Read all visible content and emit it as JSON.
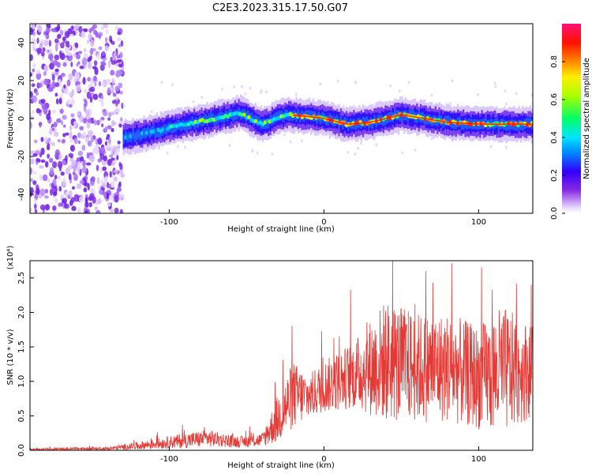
{
  "title": "C2E3.2023.315.17.50.G07",
  "chart_data": [
    {
      "type": "heatmap",
      "xlabel": "Height of straight line (km)",
      "ylabel": "Frequency (Hz)",
      "xlim": [
        -190,
        135
      ],
      "ylim": [
        -50,
        50
      ],
      "xticks": [
        -100,
        0,
        100
      ],
      "yticks": [
        -40,
        -20,
        0,
        20,
        40
      ],
      "colorbar": {
        "label": "Normalized spectral amplitude",
        "range": [
          0.0,
          1.0
        ],
        "ticks": [
          "0.0",
          "0.2",
          "0.4",
          "0.6",
          "0.8"
        ],
        "colormap": "rainbow (violet to magenta)"
      },
      "noise_region_x": [
        -190,
        -130
      ],
      "ridge": [
        {
          "x": -130,
          "f": -10
        },
        {
          "x": -110,
          "f": -7
        },
        {
          "x": -90,
          "f": -3
        },
        {
          "x": -70,
          "f": 0
        },
        {
          "x": -55,
          "f": 3
        },
        {
          "x": -40,
          "f": -3
        },
        {
          "x": -25,
          "f": 2
        },
        {
          "x": -10,
          "f": 1
        },
        {
          "x": 0,
          "f": 0
        },
        {
          "x": 15,
          "f": -3
        },
        {
          "x": 30,
          "f": -2
        },
        {
          "x": 50,
          "f": 2
        },
        {
          "x": 65,
          "f": 0
        },
        {
          "x": 80,
          "f": -2
        },
        {
          "x": 100,
          "f": -3
        },
        {
          "x": 120,
          "f": -3
        },
        {
          "x": 135,
          "f": -3
        }
      ]
    },
    {
      "type": "line",
      "xlabel": "Height of straight line (km)",
      "ylabel": "SNR (10 * v/v)",
      "yscale_label": "(x10⁴)",
      "xlim": [
        -190,
        135
      ],
      "ylim": [
        0,
        2.75
      ],
      "xticks": [
        -100,
        0,
        100
      ],
      "yticks": [
        0.0,
        0.5,
        1.0,
        1.5,
        2.0,
        2.5
      ],
      "series_color": "#e53935",
      "envelope": [
        {
          "x": -190,
          "lo": 0.0,
          "hi": 0.03
        },
        {
          "x": -140,
          "lo": 0.0,
          "hi": 0.05
        },
        {
          "x": -120,
          "lo": 0.01,
          "hi": 0.12
        },
        {
          "x": -90,
          "lo": 0.03,
          "hi": 0.25
        },
        {
          "x": -75,
          "lo": 0.05,
          "hi": 0.3
        },
        {
          "x": -55,
          "lo": 0.04,
          "hi": 0.2
        },
        {
          "x": -40,
          "lo": 0.05,
          "hi": 0.25
        },
        {
          "x": -30,
          "lo": 0.1,
          "hi": 0.8
        },
        {
          "x": -20,
          "lo": 0.3,
          "hi": 1.3
        },
        {
          "x": -10,
          "lo": 0.45,
          "hi": 1.1
        },
        {
          "x": 0,
          "lo": 0.55,
          "hi": 1.3
        },
        {
          "x": 20,
          "lo": 0.6,
          "hi": 1.6
        },
        {
          "x": 40,
          "lo": 0.4,
          "hi": 2.2
        },
        {
          "x": 60,
          "lo": 0.4,
          "hi": 2.0
        },
        {
          "x": 80,
          "lo": 0.4,
          "hi": 2.0
        },
        {
          "x": 100,
          "lo": 0.3,
          "hi": 1.8
        },
        {
          "x": 115,
          "lo": 0.2,
          "hi": 2.1
        },
        {
          "x": 135,
          "lo": 0.5,
          "hi": 1.8
        }
      ]
    }
  ]
}
